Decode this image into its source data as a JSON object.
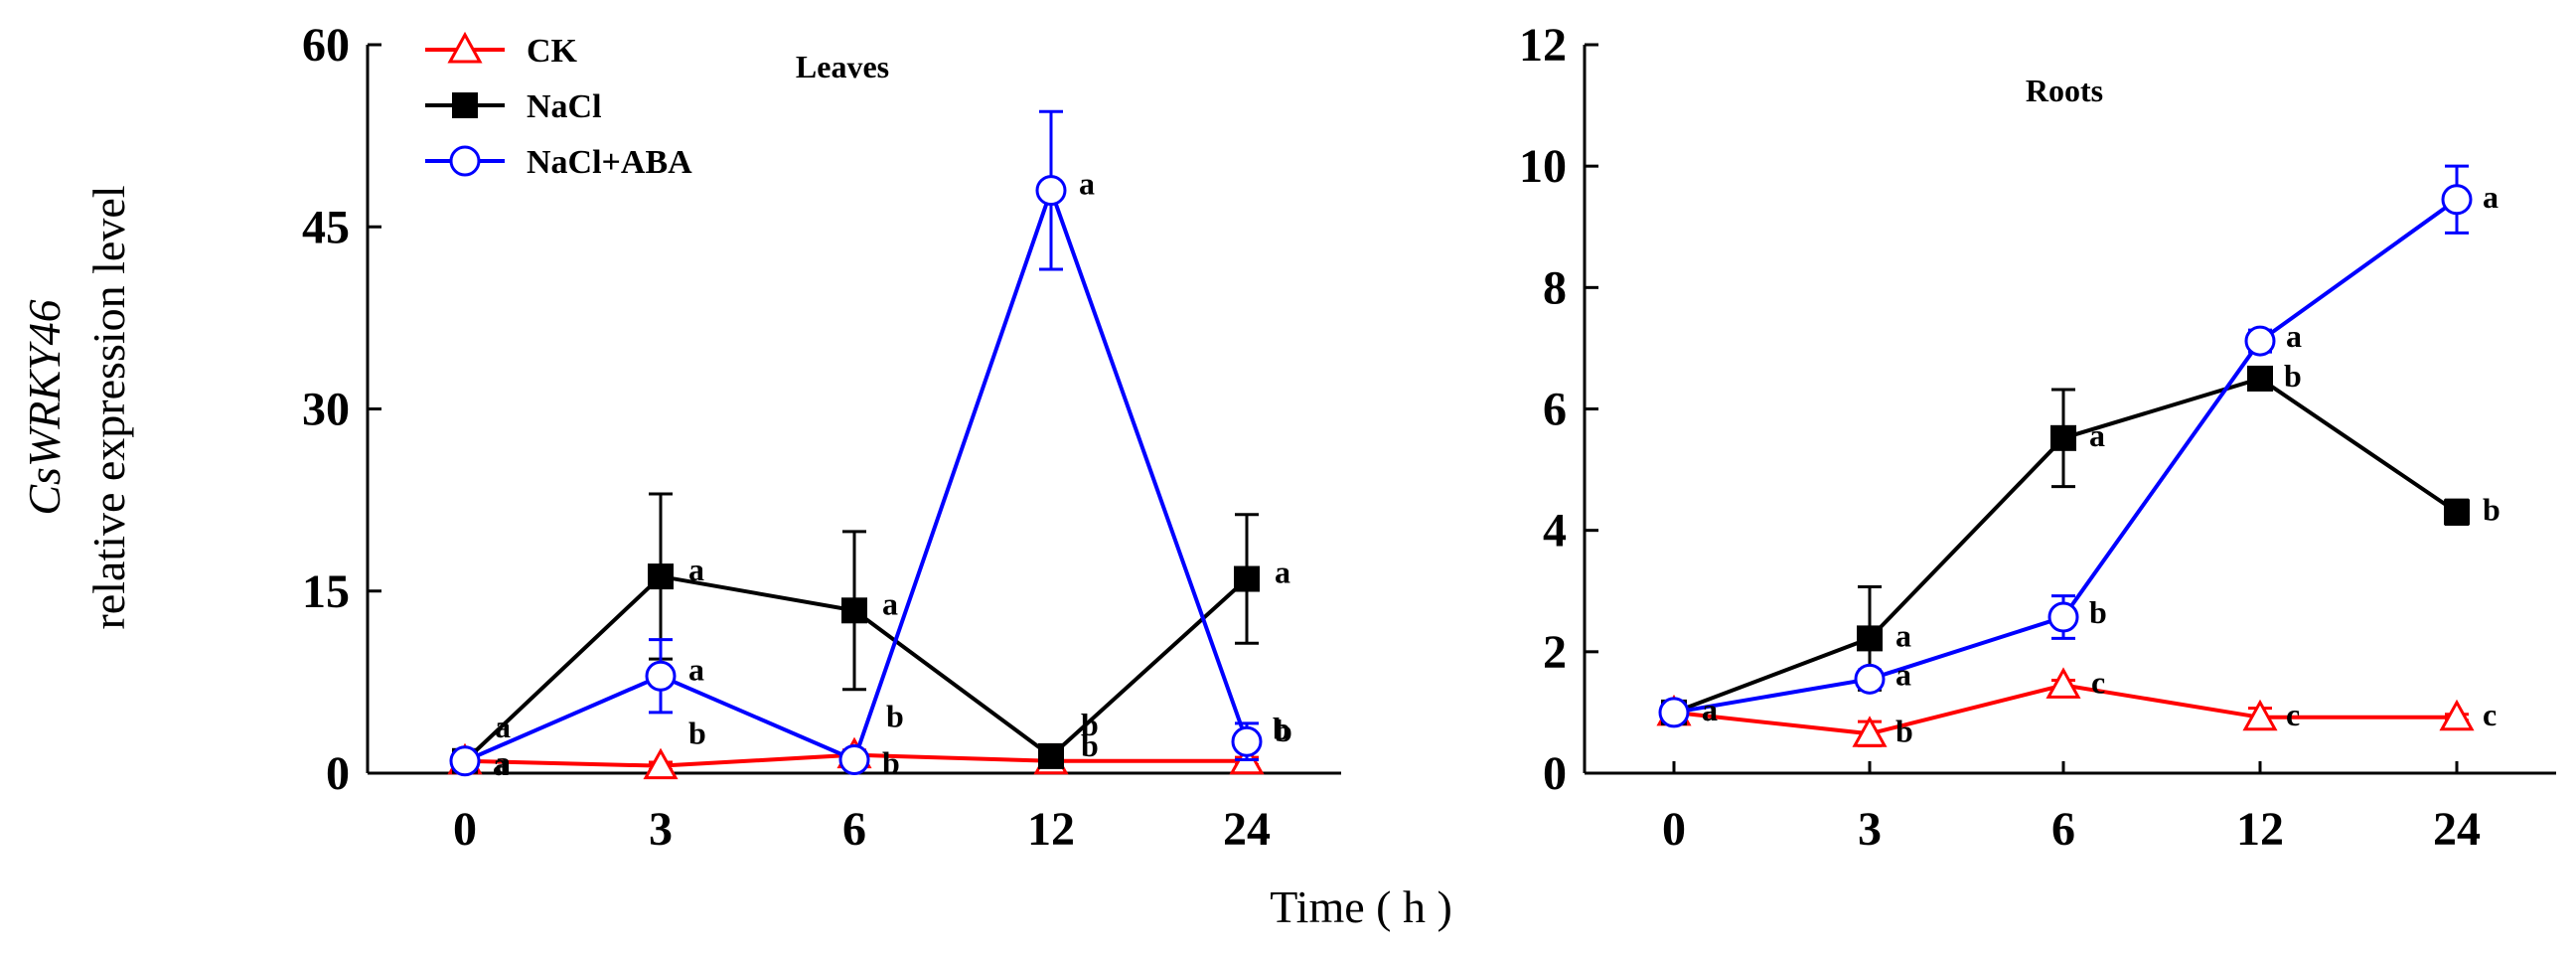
{
  "figure": {
    "ylabel_gene": "CsWRKY46",
    "ylabel_text": "relative expression level",
    "xlabel": "Time ( h )"
  },
  "legend": [
    {
      "name": "CK",
      "color": "#ff0000",
      "marker": "triangle-open"
    },
    {
      "name": "NaCl",
      "color": "#000000",
      "marker": "square-filled"
    },
    {
      "name": "NaCl+ABA",
      "color": "#0000ff",
      "marker": "circle-open"
    }
  ],
  "chart_data": [
    {
      "type": "line",
      "title": "Leaves",
      "categories": [
        "0",
        "3",
        "6",
        "12",
        "24"
      ],
      "xlabel": "Time ( h )",
      "ylabel": "CsWRKY46 relative expression level",
      "ylim": [
        0,
        60
      ],
      "yticks": [
        0,
        15,
        30,
        45,
        60
      ],
      "series": [
        {
          "name": "CK",
          "color": "#ff0000",
          "marker": "triangle-open",
          "values": [
            1.0,
            0.6,
            1.5,
            1.0,
            1.0
          ],
          "errors": [
            0.4,
            0.3,
            0.4,
            0.3,
            0.3
          ],
          "letters": [
            "a",
            "b",
            "b",
            "b",
            "b"
          ]
        },
        {
          "name": "NaCl",
          "color": "#000000",
          "marker": "square-filled",
          "values": [
            1.0,
            16.2,
            13.4,
            1.4,
            16.0
          ],
          "errors": [
            0.3,
            6.8,
            6.5,
            0.6,
            5.3
          ],
          "letters": [
            "a",
            "a",
            "a",
            "b",
            "a"
          ]
        },
        {
          "name": "NaCl+ABA",
          "color": "#0000ff",
          "marker": "circle-open",
          "values": [
            1.0,
            8.0,
            1.1,
            48.0,
            2.6
          ],
          "errors": [
            0.3,
            3.0,
            0.4,
            6.5,
            1.5
          ],
          "letters": [
            "a",
            "a",
            "b",
            "a",
            "b"
          ]
        }
      ]
    },
    {
      "type": "line",
      "title": "Roots",
      "categories": [
        "0",
        "3",
        "6",
        "12",
        "24"
      ],
      "xlabel": "Time ( h )",
      "ylabel": "",
      "ylim": [
        0,
        12
      ],
      "yticks": [
        0,
        2,
        4,
        6,
        8,
        10,
        12
      ],
      "series": [
        {
          "name": "CK",
          "color": "#ff0000",
          "marker": "triangle-open",
          "values": [
            1.0,
            0.65,
            1.45,
            0.92,
            0.92
          ],
          "errors": [
            0.05,
            0.2,
            0.08,
            0.15,
            0.05
          ],
          "letters": [
            "a",
            "b",
            "c",
            "c",
            "c"
          ]
        },
        {
          "name": "NaCl",
          "color": "#000000",
          "marker": "square-filled",
          "values": [
            1.0,
            2.22,
            5.52,
            6.5,
            4.3
          ],
          "errors": [
            0.05,
            0.85,
            0.8,
            0.08,
            0.2
          ],
          "letters": [
            "a",
            "a",
            "a",
            "b",
            "b"
          ]
        },
        {
          "name": "NaCl+ABA",
          "color": "#0000ff",
          "marker": "circle-open",
          "values": [
            1.0,
            1.55,
            2.57,
            7.12,
            9.45
          ],
          "errors": [
            0.05,
            0.15,
            0.35,
            0.18,
            0.55
          ],
          "letters": [
            "a",
            "a",
            "b",
            "a",
            "a"
          ]
        }
      ]
    }
  ]
}
